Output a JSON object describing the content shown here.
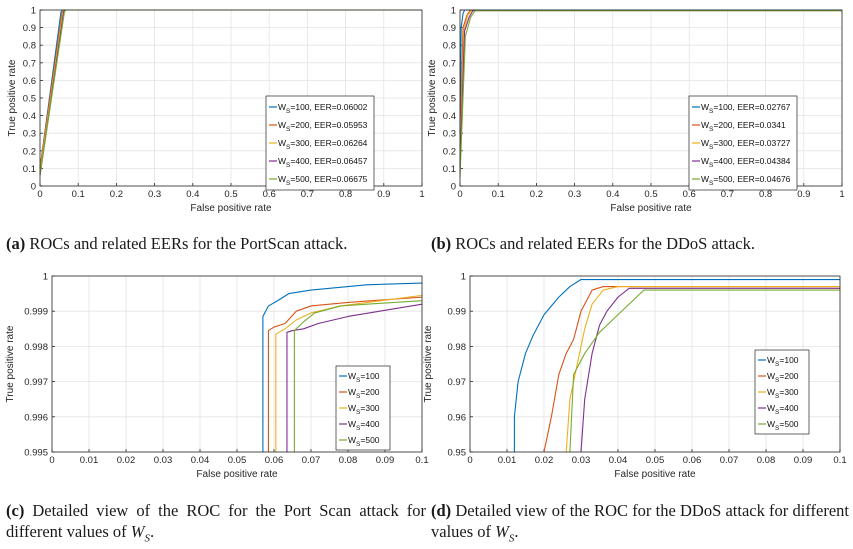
{
  "chart_data": [
    {
      "type": "line",
      "panel": "a",
      "xlabel": "False positive rate",
      "ylabel": "True positive rate",
      "xlim": [
        0,
        1
      ],
      "ylim": [
        0,
        1
      ],
      "xticks": [
        "0",
        "0.1",
        "0.2",
        "0.3",
        "0.4",
        "0.5",
        "0.6",
        "0.7",
        "0.8",
        "0.9",
        "1"
      ],
      "yticks": [
        "0",
        "0.1",
        "0.2",
        "0.3",
        "0.4",
        "0.5",
        "0.6",
        "0.7",
        "0.8",
        "0.9",
        "1"
      ],
      "grid": true,
      "legend_position": "lower-right",
      "series": [
        {
          "name": "W_S=100, EER=0.06002",
          "label_pre": "W",
          "label_sub": "S",
          "label_post": "=100, EER=0.06002",
          "color": "#0072BD",
          "x": [
            0,
            0.055,
            0.06,
            1
          ],
          "y": [
            0.1,
            0.99,
            1,
            1
          ]
        },
        {
          "name": "W_S=200, EER=0.05953",
          "label_pre": "W",
          "label_sub": "S",
          "label_post": "=200, EER=0.05953",
          "color": "#D95319",
          "x": [
            0,
            0.058,
            0.062,
            1
          ],
          "y": [
            0.1,
            0.99,
            1,
            1
          ]
        },
        {
          "name": "W_S=300, EER=0.06264",
          "label_pre": "W",
          "label_sub": "S",
          "label_post": "=300, EER=0.06264",
          "color": "#EDB120",
          "x": [
            0,
            0.06,
            0.064,
            1
          ],
          "y": [
            0.08,
            0.99,
            1,
            1
          ]
        },
        {
          "name": "W_S=400, EER=0.06457",
          "label_pre": "W",
          "label_sub": "S",
          "label_post": "=400, EER=0.06457",
          "color": "#7E2F8E",
          "x": [
            0,
            0.062,
            0.066,
            1
          ],
          "y": [
            0.06,
            0.99,
            1,
            1
          ]
        },
        {
          "name": "W_S=500, EER=0.06675",
          "label_pre": "W",
          "label_sub": "S",
          "label_post": "=500, EER=0.06675",
          "color": "#77AC30",
          "x": [
            0,
            0.064,
            0.068,
            1
          ],
          "y": [
            0.06,
            0.99,
            1,
            1
          ]
        }
      ]
    },
    {
      "type": "line",
      "panel": "b",
      "xlabel": "False positive rate",
      "ylabel": "True positive rate",
      "xlim": [
        0,
        1
      ],
      "ylim": [
        0,
        1
      ],
      "xticks": [
        "0",
        "0.1",
        "0.2",
        "0.3",
        "0.4",
        "0.5",
        "0.6",
        "0.7",
        "0.8",
        "0.9",
        "1"
      ],
      "yticks": [
        "0",
        "0.1",
        "0.2",
        "0.3",
        "0.4",
        "0.5",
        "0.6",
        "0.7",
        "0.8",
        "0.9",
        "1"
      ],
      "grid": true,
      "legend_position": "lower-right",
      "series": [
        {
          "name": "W_S=100, EER=0.02767",
          "label_pre": "W",
          "label_sub": "S",
          "label_post": "=100, EER=0.02767",
          "color": "#0072BD",
          "x": [
            0,
            0.003,
            0.008,
            0.012,
            1
          ],
          "y": [
            0.3,
            0.9,
            0.98,
            1,
            1
          ]
        },
        {
          "name": "W_S=200, EER=0.0341",
          "label_pre": "W",
          "label_sub": "S",
          "label_post": "=200, EER=0.0341",
          "color": "#D95319",
          "x": [
            0,
            0.008,
            0.018,
            0.026,
            1
          ],
          "y": [
            0.2,
            0.9,
            0.97,
            0.997,
            0.997
          ]
        },
        {
          "name": "W_S=300, EER=0.03727",
          "label_pre": "W",
          "label_sub": "S",
          "label_post": "=300, EER=0.03727",
          "color": "#EDB120",
          "x": [
            0,
            0.01,
            0.02,
            0.03,
            1
          ],
          "y": [
            0.15,
            0.88,
            0.97,
            0.997,
            0.997
          ]
        },
        {
          "name": "W_S=400, EER=0.04384",
          "label_pre": "W",
          "label_sub": "S",
          "label_post": "=400, EER=0.04384",
          "color": "#7E2F8E",
          "x": [
            0,
            0.012,
            0.024,
            0.034,
            1
          ],
          "y": [
            0.1,
            0.88,
            0.96,
            0.997,
            0.997
          ]
        },
        {
          "name": "W_S=500, EER=0.04676",
          "label_pre": "W",
          "label_sub": "S",
          "label_post": "=500, EER=0.04676",
          "color": "#77AC30",
          "x": [
            0,
            0.014,
            0.028,
            0.04,
            1
          ],
          "y": [
            0.05,
            0.85,
            0.96,
            0.997,
            0.997
          ]
        }
      ]
    },
    {
      "type": "line",
      "panel": "c",
      "xlabel": "False positive rate",
      "ylabel": "True positive rate",
      "xlim": [
        0,
        0.1
      ],
      "ylim": [
        0.995,
        1
      ],
      "xticks": [
        "0",
        "0.01",
        "0.02",
        "0.03",
        "0.04",
        "0.05",
        "0.06",
        "0.07",
        "0.08",
        "0.09",
        "0.1"
      ],
      "yticks": [
        "0.995",
        "0.996",
        "0.997",
        "0.998",
        "0.999",
        "1"
      ],
      "grid": true,
      "legend_position": "lower-right",
      "series": [
        {
          "name": "W_S=100",
          "label_pre": "W",
          "label_sub": "S",
          "label_post": "=100",
          "color": "#0072BD",
          "x": [
            0.057,
            0.057,
            0.0585,
            0.061,
            0.064,
            0.07,
            0.085,
            0.1
          ],
          "y": [
            0.995,
            0.99885,
            0.99915,
            0.9993,
            0.9995,
            0.9996,
            0.99975,
            0.9998
          ]
        },
        {
          "name": "W_S=200",
          "label_pre": "W",
          "label_sub": "S",
          "label_post": "=200",
          "color": "#D95319",
          "x": [
            0.0585,
            0.0585,
            0.06,
            0.063,
            0.066,
            0.07,
            0.08,
            0.1
          ],
          "y": [
            0.995,
            0.99845,
            0.99855,
            0.99865,
            0.999,
            0.99915,
            0.99925,
            0.9994
          ]
        },
        {
          "name": "W_S=300",
          "label_pre": "W",
          "label_sub": "S",
          "label_post": "=300",
          "color": "#EDB120",
          "x": [
            0.0605,
            0.0605,
            0.063,
            0.066,
            0.07,
            0.078,
            0.1
          ],
          "y": [
            0.995,
            0.99835,
            0.9985,
            0.99875,
            0.99895,
            0.99915,
            0.99945
          ]
        },
        {
          "name": "W_S=400",
          "label_pre": "W",
          "label_sub": "S",
          "label_post": "=400",
          "color": "#7E2F8E",
          "x": [
            0.0635,
            0.0635,
            0.065,
            0.068,
            0.072,
            0.08,
            0.1
          ],
          "y": [
            0.995,
            0.9984,
            0.99845,
            0.9985,
            0.99865,
            0.99885,
            0.9992
          ]
        },
        {
          "name": "W_S=500",
          "label_pre": "W",
          "label_sub": "S",
          "label_post": "=500",
          "color": "#77AC30",
          "x": [
            0.0655,
            0.0655,
            0.068,
            0.071,
            0.078,
            0.1
          ],
          "y": [
            0.995,
            0.99845,
            0.9987,
            0.99895,
            0.99915,
            0.9993
          ]
        }
      ]
    },
    {
      "type": "line",
      "panel": "d",
      "xlabel": "False positive rate",
      "ylabel": "True positive rate",
      "xlim": [
        0,
        0.1
      ],
      "ylim": [
        0.95,
        1
      ],
      "xticks": [
        "0",
        "0.01",
        "0.02",
        "0.03",
        "0.04",
        "0.05",
        "0.06",
        "0.07",
        "0.08",
        "0.09",
        "0.1"
      ],
      "yticks": [
        "0.95",
        "0.96",
        "0.97",
        "0.98",
        "0.99",
        "1"
      ],
      "grid": true,
      "legend_position": "right",
      "series": [
        {
          "name": "W_S=100",
          "label_pre": "W",
          "label_sub": "S",
          "label_post": "=100",
          "color": "#0072BD",
          "x": [
            0.012,
            0.012,
            0.013,
            0.015,
            0.017,
            0.02,
            0.024,
            0.027,
            0.03,
            0.1
          ],
          "y": [
            0.95,
            0.96,
            0.97,
            0.978,
            0.983,
            0.989,
            0.994,
            0.997,
            0.999,
            0.999
          ]
        },
        {
          "name": "W_S=200",
          "label_pre": "W",
          "label_sub": "S",
          "label_post": "=200",
          "color": "#D95319",
          "x": [
            0.02,
            0.022,
            0.024,
            0.026,
            0.028,
            0.03,
            0.033,
            0.036,
            0.1
          ],
          "y": [
            0.95,
            0.96,
            0.972,
            0.978,
            0.982,
            0.99,
            0.996,
            0.997,
            0.997
          ]
        },
        {
          "name": "W_S=300",
          "label_pre": "W",
          "label_sub": "S",
          "label_post": "=300",
          "color": "#EDB120",
          "x": [
            0.026,
            0.027,
            0.029,
            0.031,
            0.033,
            0.036,
            0.04,
            0.1
          ],
          "y": [
            0.95,
            0.965,
            0.975,
            0.985,
            0.992,
            0.996,
            0.997,
            0.997
          ]
        },
        {
          "name": "W_S=400",
          "label_pre": "W",
          "label_sub": "S",
          "label_post": "=400",
          "color": "#7E2F8E",
          "x": [
            0.03,
            0.031,
            0.033,
            0.035,
            0.037,
            0.04,
            0.043,
            0.1
          ],
          "y": [
            0.95,
            0.965,
            0.978,
            0.986,
            0.99,
            0.994,
            0.9965,
            0.9965
          ]
        },
        {
          "name": "W_S=500",
          "label_pre": "W",
          "label_sub": "S",
          "label_post": "=500",
          "color": "#77AC30",
          "x": [
            0.027,
            0.028,
            0.031,
            0.035,
            0.039,
            0.043,
            0.047,
            0.1
          ],
          "y": [
            0.95,
            0.972,
            0.978,
            0.984,
            0.988,
            0.992,
            0.996,
            0.996
          ]
        }
      ]
    }
  ],
  "captions": {
    "a": {
      "letter": "(a)",
      "text": " ROCs and related EERs for the PortScan attack."
    },
    "b": {
      "letter": "(b)",
      "text": " ROCs and related EERs for the DDoS attack."
    },
    "c": {
      "letter": "(c)",
      "text": " Detailed view of the ROC for the Port Scan attack for different values of ",
      "var": "W",
      "sub": "S",
      "end": "."
    },
    "d": {
      "letter": "(d)",
      "text": " Detailed view of the ROC for the DDoS attack for different values of ",
      "var": "W",
      "sub": "S",
      "end": "."
    }
  }
}
